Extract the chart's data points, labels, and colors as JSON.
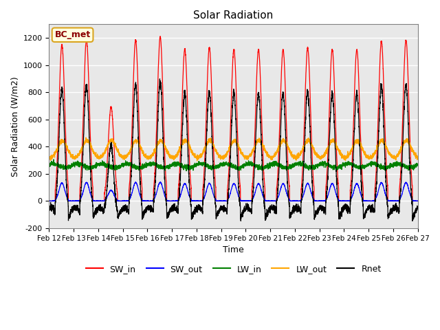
{
  "title": "Solar Radiation",
  "xlabel": "Time",
  "ylabel": "Solar Radiation (W/m2)",
  "ylim": [
    -200,
    1300
  ],
  "yticks": [
    -200,
    0,
    200,
    400,
    600,
    800,
    1000,
    1200
  ],
  "x_tick_labels": [
    "Feb 12",
    "Feb 13",
    "Feb 14",
    "Feb 15",
    "Feb 16",
    "Feb 17",
    "Feb 18",
    "Feb 19",
    "Feb 20",
    "Feb 21",
    "Feb 22",
    "Feb 23",
    "Feb 24",
    "Feb 25",
    "Feb 26",
    "Feb 27"
  ],
  "station_label": "BC_met",
  "legend_entries": [
    "SW_in",
    "SW_out",
    "LW_in",
    "LW_out",
    "Rnet"
  ],
  "line_colors": [
    "red",
    "blue",
    "green",
    "orange",
    "black"
  ],
  "background_color": "#ffffff",
  "plot_bg_color": "#e8e8e8",
  "n_days": 15,
  "points_per_day": 288,
  "sw_in_peak": 1150,
  "lw_in_base": 260,
  "lw_out_base": 315,
  "lw_out_daytime_add": 130,
  "rnet_night": -85
}
